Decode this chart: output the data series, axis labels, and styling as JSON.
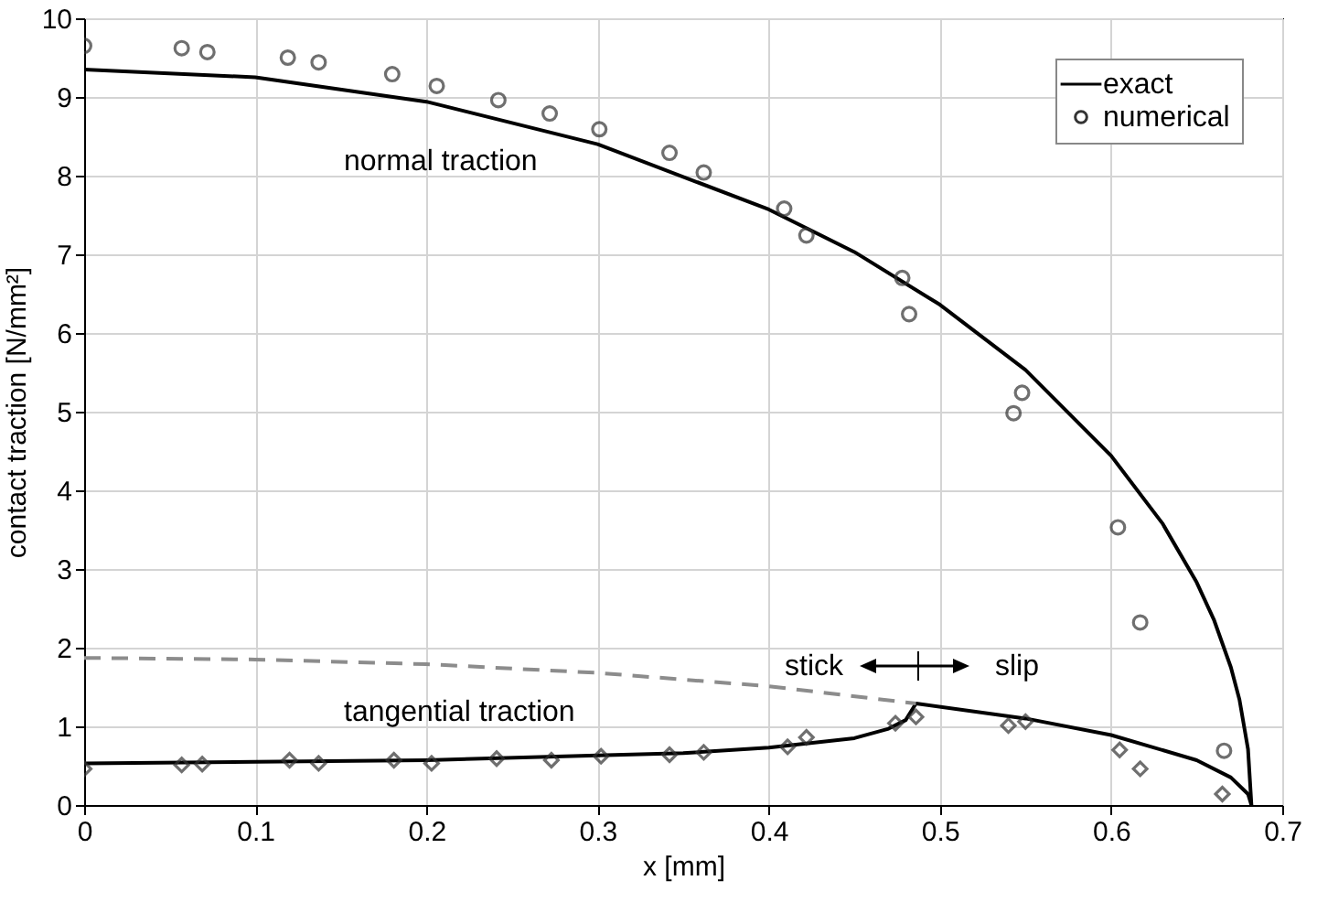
{
  "chart_data": {
    "type": "line",
    "xlabel": "x [mm]",
    "ylabel": "contact traction [N/mm²]",
    "xlim": [
      0,
      0.7
    ],
    "ylim": [
      0,
      10
    ],
    "xticks": [
      0,
      0.1,
      0.2,
      0.3,
      0.4,
      0.5,
      0.6,
      0.7
    ],
    "yticks": [
      0,
      1,
      2,
      3,
      4,
      5,
      6,
      7,
      8,
      9,
      10
    ],
    "grid": true,
    "legend": "top right",
    "series": [
      {
        "name": "exact",
        "color": "#000000",
        "line_style": "solid",
        "x": [
          0,
          0.1,
          0.2,
          0.3,
          0.4,
          0.45,
          0.5,
          0.55,
          0.6,
          0.63,
          0.65,
          0.66,
          0.67,
          0.675,
          0.68,
          0.682
        ],
        "values": [
          9.35,
          9.25,
          8.94,
          8.4,
          7.57,
          7.03,
          6.36,
          5.53,
          4.44,
          3.58,
          2.83,
          2.36,
          1.75,
          1.34,
          0.71,
          0
        ]
      },
      {
        "color": "#000000",
        "line_style": "solid",
        "x": [
          0,
          0.1,
          0.2,
          0.3,
          0.35,
          0.4,
          0.45,
          0.47,
          0.48,
          0.486,
          0.55,
          0.6,
          0.65,
          0.67,
          0.68,
          0.682
        ],
        "values": [
          0.53,
          0.55,
          0.57,
          0.63,
          0.66,
          0.73,
          0.85,
          0.97,
          1.08,
          1.29,
          1.1,
          0.89,
          0.57,
          0.35,
          0.14,
          0
        ]
      },
      {
        "color": "#8c8c8c",
        "line_style": "dashed",
        "x": [
          0,
          0.1,
          0.2,
          0.3,
          0.4,
          0.486
        ],
        "values": [
          1.87,
          1.85,
          1.79,
          1.68,
          1.51,
          1.29
        ]
      },
      {
        "name": "numerical",
        "type": "scatter",
        "color": "#333333",
        "marker": "circle",
        "x": [
          0,
          0.057,
          0.072,
          0.119,
          0.137,
          0.18,
          0.206,
          0.242,
          0.272,
          0.301,
          0.342,
          0.362,
          0.409,
          0.422,
          0.478,
          0.482,
          0.548,
          0.543,
          0.604,
          0.617,
          0.666
        ],
        "values": [
          9.65,
          9.62,
          9.57,
          9.5,
          9.44,
          9.29,
          9.14,
          8.96,
          8.79,
          8.59,
          8.29,
          8.04,
          7.58,
          7.24,
          6.7,
          6.24,
          5.24,
          4.98,
          3.53,
          2.32,
          0.69
        ]
      },
      {
        "type": "scatter",
        "color": "#333333",
        "marker": "diamond",
        "x": [
          0,
          0.057,
          0.069,
          0.12,
          0.137,
          0.181,
          0.203,
          0.241,
          0.273,
          0.302,
          0.342,
          0.362,
          0.411,
          0.422,
          0.474,
          0.486,
          0.54,
          0.55,
          0.605,
          0.617,
          0.665
        ],
        "values": [
          0.46,
          0.51,
          0.52,
          0.57,
          0.53,
          0.57,
          0.53,
          0.59,
          0.57,
          0.62,
          0.64,
          0.67,
          0.74,
          0.86,
          1.04,
          1.12,
          1.01,
          1.06,
          0.7,
          0.46,
          0.14
        ]
      }
    ],
    "annotations": [
      "normal traction",
      "tangential traction",
      "stick",
      "slip"
    ]
  }
}
